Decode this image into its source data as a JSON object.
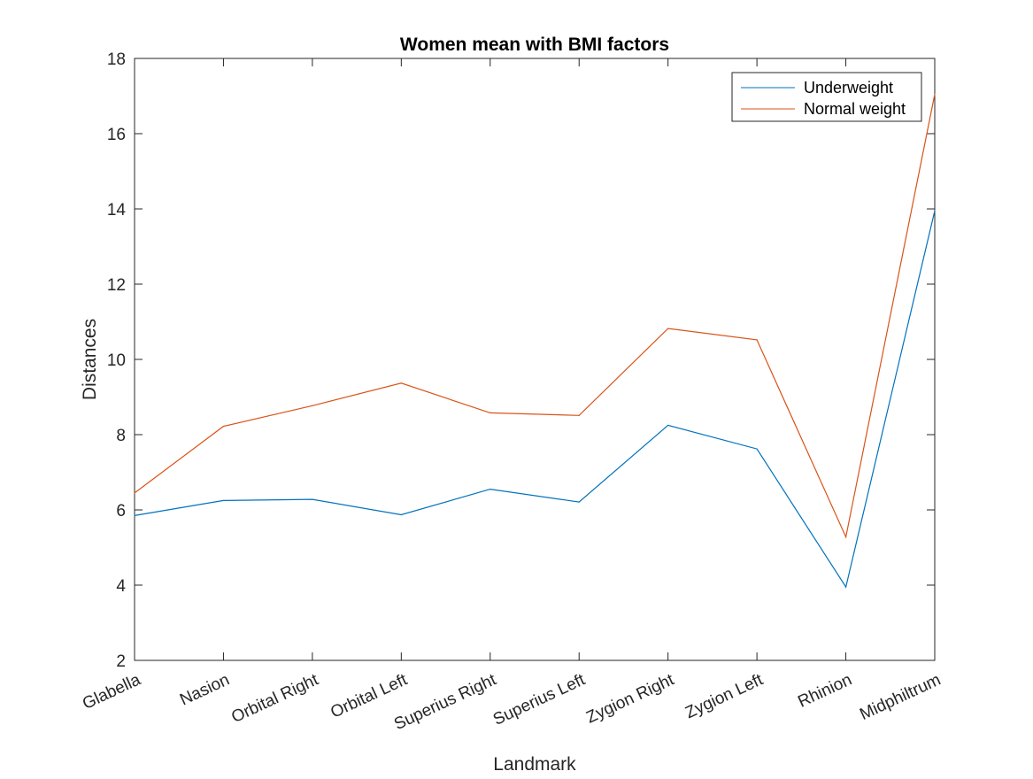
{
  "chart_data": {
    "type": "line",
    "title": "Women mean with BMI factors",
    "xlabel": "Landmark",
    "ylabel": "Distances",
    "categories": [
      "Glabella",
      "Nasion",
      "Orbital Right",
      "Orbital Left",
      "Superius Right",
      "Superius Left",
      "Zygion Right",
      "Zygion Left",
      "Rhinion",
      "Midphiltrum"
    ],
    "ylim": [
      2,
      18
    ],
    "yticks": [
      "2",
      "4",
      "6",
      "8",
      "10",
      "12",
      "14",
      "16",
      "18"
    ],
    "grid": false,
    "legend_position": "top-right",
    "series": [
      {
        "name": "Underweight",
        "color": "#0072BD",
        "values": [
          5.85,
          6.25,
          6.28,
          5.87,
          6.55,
          6.21,
          8.25,
          7.62,
          3.95,
          13.95
        ]
      },
      {
        "name": "Normal weight",
        "color": "#D95319",
        "values": [
          6.45,
          8.22,
          8.77,
          9.37,
          8.58,
          8.51,
          10.82,
          10.52,
          5.28,
          17.05
        ]
      }
    ]
  }
}
